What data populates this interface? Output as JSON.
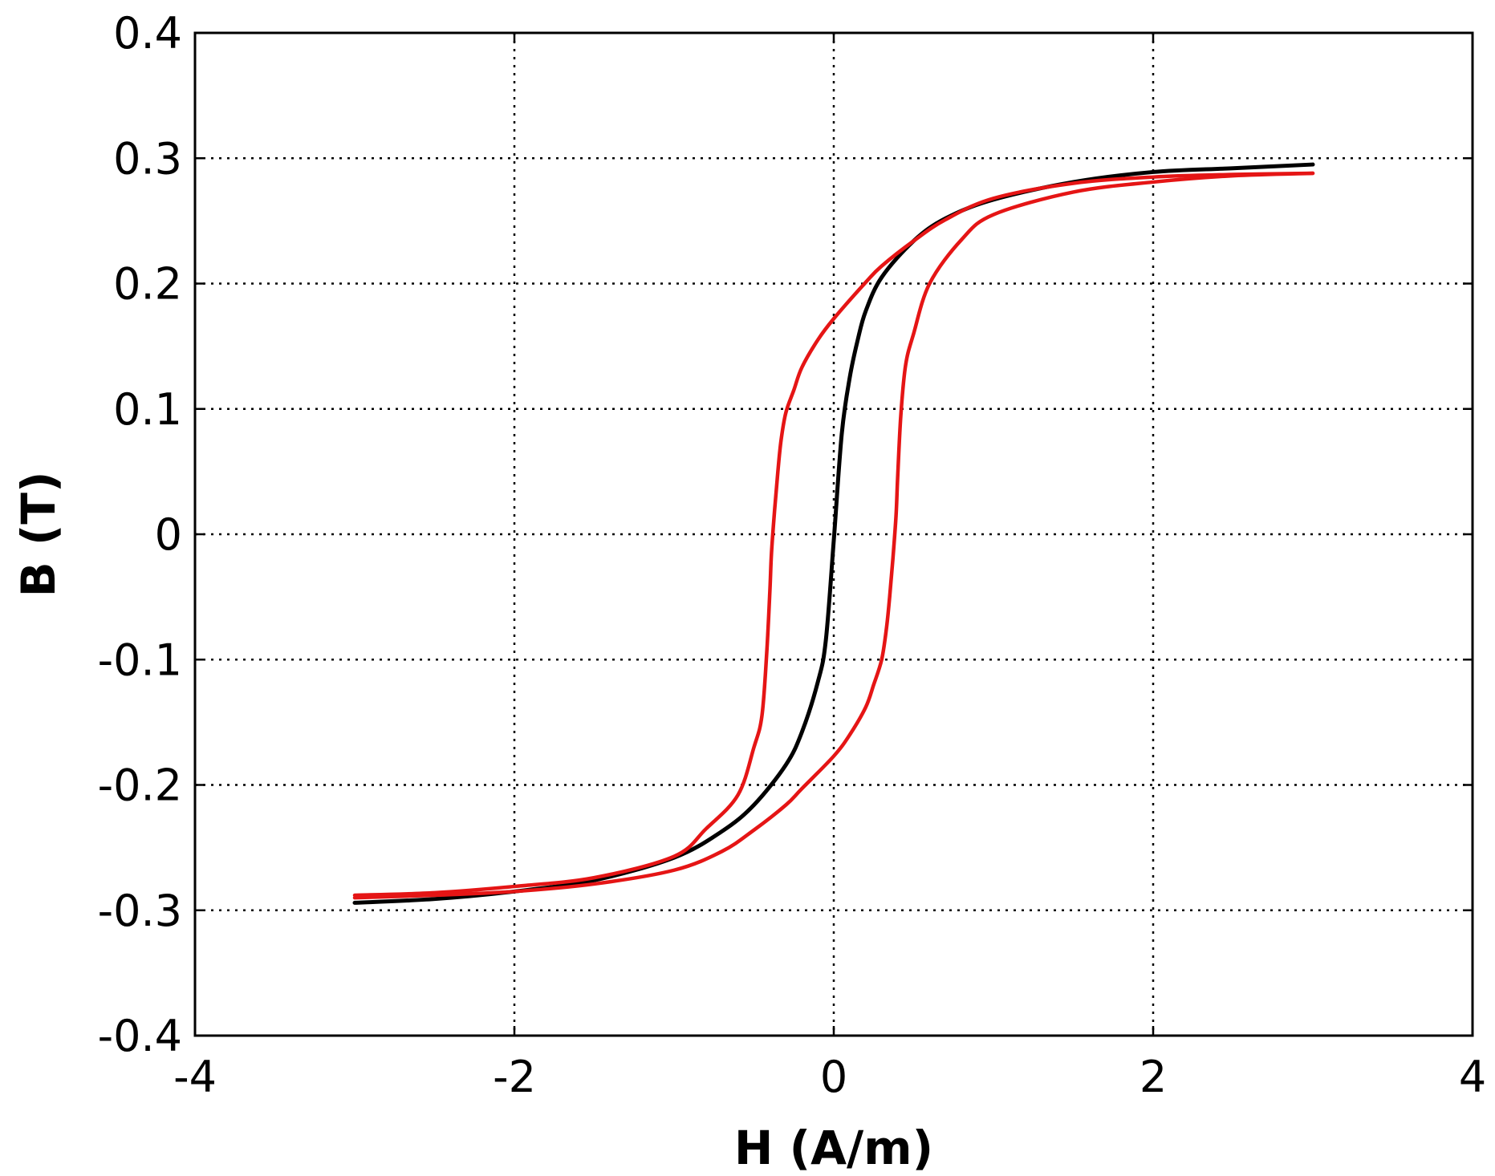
{
  "chart_data": {
    "type": "line",
    "xlabel": "H (A/m)",
    "ylabel": "B (T)",
    "xlim": [
      -4,
      4
    ],
    "ylim": [
      -0.4,
      0.4
    ],
    "x_ticks": [
      -4,
      -2,
      0,
      2,
      4
    ],
    "y_ticks": [
      -0.4,
      -0.3,
      -0.2,
      -0.1,
      0,
      0.1,
      0.2,
      0.3,
      0.4
    ],
    "x_tick_labels": [
      "-4",
      "-2",
      "0",
      "2",
      "4"
    ],
    "y_tick_labels": [
      "-0.4",
      "-0.3",
      "-0.2",
      "-0.1",
      "0",
      "0.1",
      "0.2",
      "0.3",
      "0.4"
    ],
    "grid": true,
    "grid_style": "dotted",
    "legend": false,
    "series": [
      {
        "color": "#000000",
        "x": [
          -3.0,
          -2.5,
          -2.0,
          -1.5,
          -1.0,
          -0.7,
          -0.5,
          -0.3,
          -0.2,
          -0.1,
          -0.05,
          0.0,
          0.05,
          0.1,
          0.15,
          0.2,
          0.3,
          0.5,
          0.7,
          1.0,
          1.5,
          2.0,
          2.5,
          3.0
        ],
        "y": [
          -0.294,
          -0.291,
          -0.285,
          -0.276,
          -0.258,
          -0.237,
          -0.216,
          -0.184,
          -0.158,
          -0.118,
          -0.085,
          -0.005,
          0.08,
          0.125,
          0.155,
          0.178,
          0.205,
          0.234,
          0.252,
          0.267,
          0.281,
          0.289,
          0.292,
          0.295
        ]
      },
      {
        "color": "#e51515",
        "x": [
          3.0,
          2.5,
          2.0,
          1.5,
          1.0,
          0.7,
          0.5,
          0.3,
          0.2,
          0.0,
          -0.1,
          -0.2,
          -0.25,
          -0.3,
          -0.33,
          -0.35,
          -0.37,
          -0.39,
          -0.4,
          -0.42,
          -0.45,
          -0.5,
          -0.6,
          -0.8,
          -1.0,
          -1.5,
          -2.0,
          -2.5,
          -3.0
        ],
        "y": [
          0.288,
          0.287,
          0.285,
          0.28,
          0.268,
          0.251,
          0.234,
          0.214,
          0.201,
          0.172,
          0.155,
          0.133,
          0.115,
          0.097,
          0.075,
          0.05,
          0.02,
          -0.015,
          -0.045,
          -0.095,
          -0.145,
          -0.17,
          -0.208,
          -0.235,
          -0.257,
          -0.274,
          -0.281,
          -0.286,
          -0.288
        ]
      },
      {
        "color": "#e51515",
        "x": [
          -3.0,
          -2.5,
          -2.0,
          -1.5,
          -1.0,
          -0.7,
          -0.5,
          -0.3,
          -0.2,
          0.0,
          0.1,
          0.2,
          0.25,
          0.3,
          0.33,
          0.35,
          0.37,
          0.39,
          0.4,
          0.42,
          0.45,
          0.5,
          0.6,
          0.8,
          1.0,
          1.5,
          2.0,
          2.5,
          3.0
        ],
        "y": [
          -0.29,
          -0.288,
          -0.285,
          -0.279,
          -0.268,
          -0.253,
          -0.236,
          -0.216,
          -0.203,
          -0.177,
          -0.16,
          -0.138,
          -0.12,
          -0.1,
          -0.075,
          -0.05,
          -0.02,
          0.015,
          0.045,
          0.095,
          0.135,
          0.16,
          0.2,
          0.235,
          0.255,
          0.273,
          0.281,
          0.286,
          0.288
        ]
      }
    ]
  }
}
